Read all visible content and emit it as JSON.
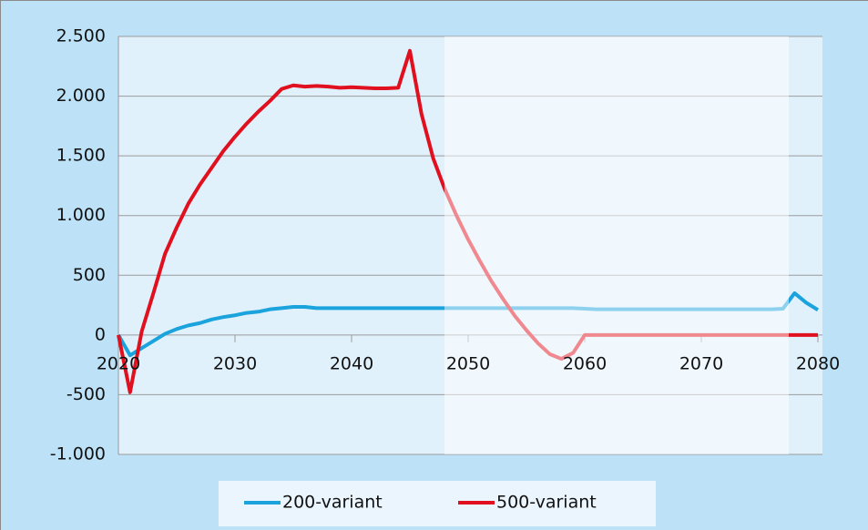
{
  "chart_data": {
    "type": "line",
    "x": [
      2020,
      2021,
      2022,
      2023,
      2024,
      2025,
      2026,
      2027,
      2028,
      2029,
      2030,
      2031,
      2032,
      2033,
      2034,
      2035,
      2036,
      2037,
      2038,
      2039,
      2040,
      2041,
      2042,
      2043,
      2044,
      2045,
      2046,
      2047,
      2048,
      2049,
      2050,
      2051,
      2052,
      2053,
      2054,
      2055,
      2056,
      2057,
      2058,
      2059,
      2060,
      2061,
      2062,
      2063,
      2064,
      2065,
      2066,
      2067,
      2068,
      2069,
      2070,
      2071,
      2072,
      2073,
      2074,
      2075,
      2076,
      2077,
      2078,
      2079,
      2080
    ],
    "series": [
      {
        "name": "200-variant",
        "color": "#1aa3dc",
        "values": [
          0,
          -170,
          -110,
          -50,
          10,
          50,
          80,
          100,
          130,
          150,
          165,
          185,
          195,
          215,
          225,
          235,
          235,
          225,
          225,
          225,
          225,
          225,
          225,
          225,
          225,
          225,
          225,
          225,
          225,
          225,
          225,
          225,
          225,
          225,
          225,
          225,
          225,
          225,
          225,
          225,
          220,
          215,
          215,
          215,
          215,
          215,
          215,
          215,
          215,
          215,
          215,
          215,
          215,
          215,
          215,
          215,
          215,
          220,
          350,
          270,
          210
        ]
      },
      {
        "name": "500-variant",
        "color": "#e0101e",
        "values": [
          0,
          -480,
          30,
          350,
          680,
          900,
          1100,
          1260,
          1400,
          1540,
          1660,
          1770,
          1870,
          1960,
          2060,
          2090,
          2080,
          2085,
          2080,
          2070,
          2075,
          2070,
          2065,
          2065,
          2070,
          2380,
          1850,
          1480,
          1220,
          1000,
          800,
          620,
          450,
          300,
          160,
          40,
          -70,
          -160,
          -200,
          -150,
          0,
          0,
          0,
          0,
          0,
          0,
          0,
          0,
          0,
          0,
          0,
          0,
          0,
          0,
          0,
          0,
          0,
          0,
          0,
          0,
          0
        ]
      }
    ],
    "xlim": [
      2020,
      2080
    ],
    "xticks": [
      2020,
      2030,
      2040,
      2050,
      2060,
      2070,
      2080
    ],
    "ylim": [
      -1000,
      2500
    ],
    "yticks": [
      {
        "value": -1000,
        "label": "-1.000"
      },
      -500,
      0,
      500,
      {
        "value": 1000,
        "label": "1.000"
      },
      {
        "value": 1500,
        "label": "1.500"
      },
      {
        "value": 2000,
        "label": "2.000"
      },
      {
        "value": 2500,
        "label": "2.500"
      }
    ],
    "grid": true
  }
}
